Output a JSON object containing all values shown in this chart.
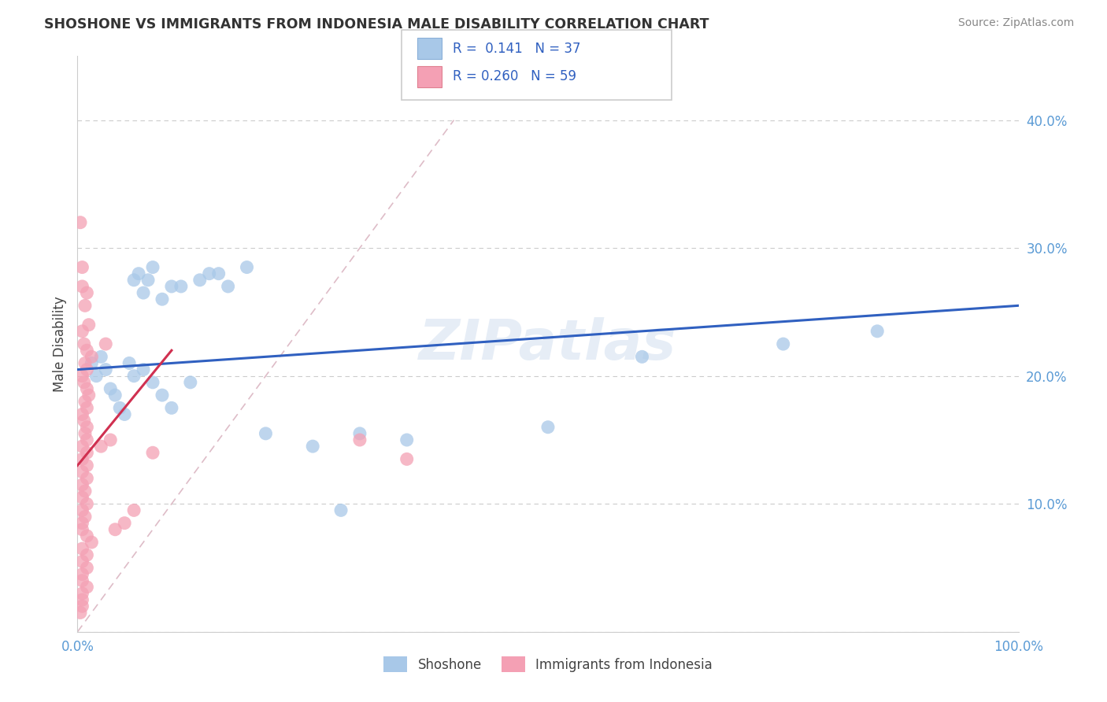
{
  "title": "SHOSHONE VS IMMIGRANTS FROM INDONESIA MALE DISABILITY CORRELATION CHART",
  "source": "Source: ZipAtlas.com",
  "ylabel": "Male Disability",
  "xlim": [
    0,
    100
  ],
  "ylim": [
    0,
    45
  ],
  "ytick_vals": [
    0,
    10,
    20,
    30,
    40
  ],
  "ytick_labels": [
    "",
    "10.0%",
    "20.0%",
    "30.0%",
    "40.0%"
  ],
  "xtick_vals": [
    0,
    10,
    20,
    30,
    40,
    50,
    60,
    70,
    80,
    90,
    100
  ],
  "xtick_labels": [
    "0.0%",
    "",
    "",
    "",
    "",
    "",
    "",
    "",
    "",
    "",
    "100.0%"
  ],
  "watermark": "ZIPatlas",
  "shoshone_color": "#a8c8e8",
  "indonesia_color": "#f4a0b4",
  "shoshone_line_color": "#3060c0",
  "indonesia_line_color": "#d03050",
  "tick_color": "#5b9bd5",
  "shoshone_scatter": [
    [
      1.5,
      21.0
    ],
    [
      2.0,
      20.0
    ],
    [
      2.5,
      21.5
    ],
    [
      3.0,
      20.5
    ],
    [
      3.5,
      19.0
    ],
    [
      4.0,
      18.5
    ],
    [
      4.5,
      17.5
    ],
    [
      5.0,
      17.0
    ],
    [
      5.5,
      21.0
    ],
    [
      6.0,
      27.5
    ],
    [
      6.5,
      28.0
    ],
    [
      7.0,
      26.5
    ],
    [
      7.5,
      27.5
    ],
    [
      8.0,
      28.5
    ],
    [
      9.0,
      26.0
    ],
    [
      10.0,
      27.0
    ],
    [
      11.0,
      27.0
    ],
    [
      12.0,
      19.5
    ],
    [
      13.0,
      27.5
    ],
    [
      14.0,
      28.0
    ],
    [
      15.0,
      28.0
    ],
    [
      16.0,
      27.0
    ],
    [
      18.0,
      28.5
    ],
    [
      6.0,
      20.0
    ],
    [
      7.0,
      20.5
    ],
    [
      8.0,
      19.5
    ],
    [
      9.0,
      18.5
    ],
    [
      10.0,
      17.5
    ],
    [
      20.0,
      15.5
    ],
    [
      25.0,
      14.5
    ],
    [
      28.0,
      9.5
    ],
    [
      30.0,
      15.5
    ],
    [
      35.0,
      15.0
    ],
    [
      50.0,
      16.0
    ],
    [
      60.0,
      21.5
    ],
    [
      75.0,
      22.5
    ],
    [
      85.0,
      23.5
    ]
  ],
  "indonesia_scatter": [
    [
      0.3,
      32.0
    ],
    [
      0.5,
      28.5
    ],
    [
      0.5,
      27.0
    ],
    [
      1.0,
      26.5
    ],
    [
      0.8,
      25.5
    ],
    [
      1.2,
      24.0
    ],
    [
      1.5,
      21.5
    ],
    [
      0.5,
      23.5
    ],
    [
      0.7,
      22.5
    ],
    [
      1.0,
      22.0
    ],
    [
      0.8,
      21.0
    ],
    [
      1.0,
      20.5
    ],
    [
      0.5,
      20.0
    ],
    [
      0.7,
      19.5
    ],
    [
      1.0,
      19.0
    ],
    [
      1.2,
      18.5
    ],
    [
      0.8,
      18.0
    ],
    [
      1.0,
      17.5
    ],
    [
      0.5,
      17.0
    ],
    [
      0.7,
      16.5
    ],
    [
      1.0,
      16.0
    ],
    [
      0.8,
      15.5
    ],
    [
      1.0,
      15.0
    ],
    [
      0.5,
      14.5
    ],
    [
      1.0,
      14.0
    ],
    [
      0.5,
      13.5
    ],
    [
      1.0,
      13.0
    ],
    [
      0.5,
      12.5
    ],
    [
      1.0,
      12.0
    ],
    [
      0.5,
      11.5
    ],
    [
      0.8,
      11.0
    ],
    [
      0.5,
      10.5
    ],
    [
      1.0,
      10.0
    ],
    [
      0.5,
      9.5
    ],
    [
      0.8,
      9.0
    ],
    [
      0.5,
      8.5
    ],
    [
      0.5,
      8.0
    ],
    [
      1.0,
      7.5
    ],
    [
      1.5,
      7.0
    ],
    [
      0.5,
      6.5
    ],
    [
      1.0,
      6.0
    ],
    [
      0.5,
      5.5
    ],
    [
      1.0,
      5.0
    ],
    [
      0.5,
      4.5
    ],
    [
      0.5,
      4.0
    ],
    [
      1.0,
      3.5
    ],
    [
      0.5,
      3.0
    ],
    [
      0.5,
      2.5
    ],
    [
      0.5,
      2.0
    ],
    [
      0.3,
      1.5
    ],
    [
      2.5,
      14.5
    ],
    [
      3.5,
      15.0
    ],
    [
      4.0,
      8.0
    ],
    [
      5.0,
      8.5
    ],
    [
      6.0,
      9.5
    ],
    [
      8.0,
      14.0
    ],
    [
      3.0,
      22.5
    ],
    [
      30.0,
      15.0
    ],
    [
      35.0,
      13.5
    ]
  ],
  "shoshone_trend_x": [
    0,
    100
  ],
  "shoshone_trend_y": [
    20.5,
    25.5
  ],
  "indonesia_trend_x": [
    0,
    10
  ],
  "indonesia_trend_y": [
    13.0,
    22.0
  ]
}
